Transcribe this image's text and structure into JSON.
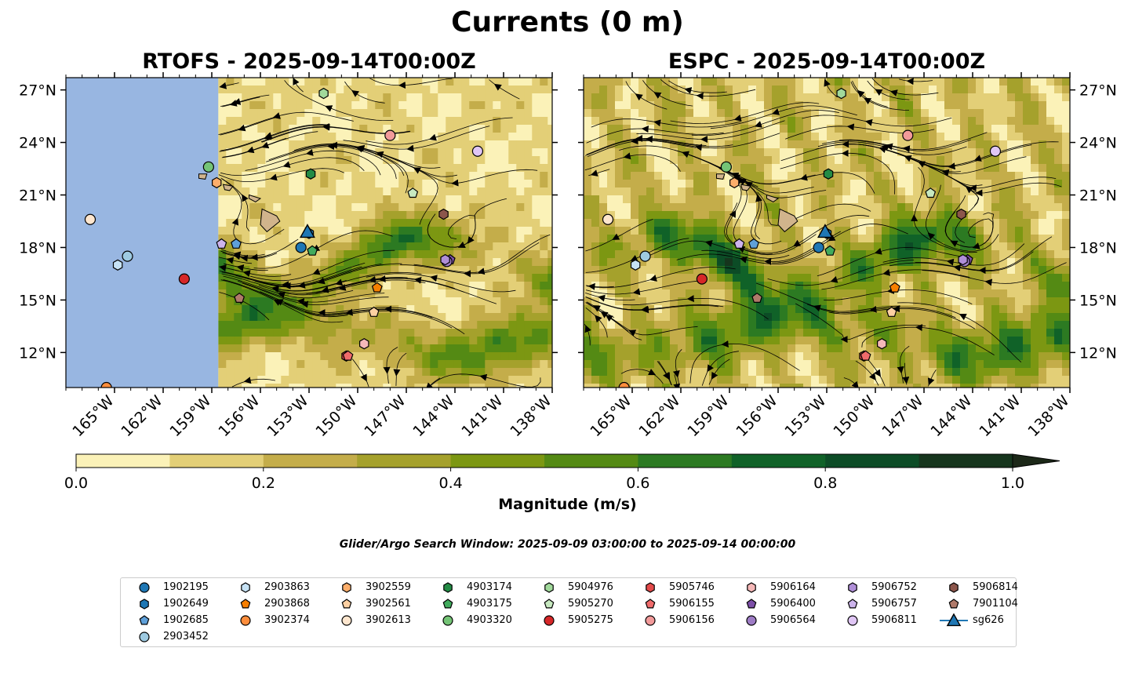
{
  "title": "Currents (0 m)",
  "panels": [
    {
      "title": "RTOFS - 2025-09-14T00:00Z"
    },
    {
      "title": "ESPC - 2025-09-14T00:00Z"
    }
  ],
  "colorbar": {
    "label": "Magnitude (m/s)",
    "ticks": [
      "0.0",
      "0.2",
      "0.4",
      "0.6",
      "0.8",
      "1.0"
    ],
    "levels": [
      0.0,
      0.1,
      0.2,
      0.3,
      0.4,
      0.5,
      0.6,
      0.7,
      0.8,
      0.9,
      1.0
    ],
    "colors": [
      "#fbf2b8",
      "#e3cf77",
      "#c4ad4a",
      "#a5a12c",
      "#7c9712",
      "#548a14",
      "#2c7a22",
      "#106228",
      "#0c4c26",
      "#16351d",
      "#1c2818"
    ]
  },
  "search_window": "Glider/Argo Search Window: 2025-09-09 03:00:00 to 2025-09-14 00:00:00",
  "chart_data": {
    "type": "map",
    "extent_lon": [
      -168,
      -138
    ],
    "extent_lat": [
      10,
      27.7
    ],
    "lon_ticks": [
      -165,
      -162,
      -159,
      -156,
      -153,
      -150,
      -147,
      -144,
      -141,
      -138
    ],
    "lon_tick_labels": [
      "165°W",
      "162°W",
      "159°W",
      "156°W",
      "153°W",
      "150°W",
      "147°W",
      "144°W",
      "141°W",
      "138°W"
    ],
    "lat_ticks": [
      12,
      15,
      18,
      21,
      24,
      27
    ],
    "lat_tick_labels": [
      "12°N",
      "15°N",
      "18°N",
      "21°N",
      "24°N",
      "27°N"
    ],
    "rtofs_data_west_edge_lon": -158.6,
    "colors": {
      "ocean_nodata": "#98b6e1",
      "land": "#d1b48c"
    },
    "platforms": [
      {
        "id": "1902195",
        "marker": "o",
        "color": "#1f77b4",
        "lon": -153.5,
        "lat": 18.0
      },
      {
        "id": "1902649",
        "marker": "h",
        "color": "#1f77b4",
        "lon": -153.0,
        "lat": 18.8
      },
      {
        "id": "1902685",
        "marker": "p",
        "color": "#5fa0d9",
        "lon": -157.5,
        "lat": 18.2
      },
      {
        "id": "2903452",
        "marker": "o",
        "color": "#9ecae1",
        "lon": -164.2,
        "lat": 17.5
      },
      {
        "id": "2903863",
        "marker": "h",
        "color": "#c6e2f5",
        "lon": -164.8,
        "lat": 17.0
      },
      {
        "id": "2903868",
        "marker": "p",
        "color": "#f77f00",
        "lon": -148.8,
        "lat": 15.7
      },
      {
        "id": "3902374",
        "marker": "o",
        "color": "#fd8d3c",
        "lon": -165.5,
        "lat": 10.0
      },
      {
        "id": "3902559",
        "marker": "h",
        "color": "#fdae6b",
        "lon": -158.7,
        "lat": 21.7
      },
      {
        "id": "3902561",
        "marker": "p",
        "color": "#fdd0a2",
        "lon": -149.0,
        "lat": 14.3
      },
      {
        "id": "3902613",
        "marker": "o",
        "color": "#fee6ce",
        "lon": -166.5,
        "lat": 19.6
      },
      {
        "id": "4903174",
        "marker": "h",
        "color": "#238b45",
        "lon": -152.9,
        "lat": 22.2
      },
      {
        "id": "4903175",
        "marker": "p",
        "color": "#41ab5d",
        "lon": -152.8,
        "lat": 17.8
      },
      {
        "id": "4903320",
        "marker": "o",
        "color": "#74c476",
        "lon": -159.2,
        "lat": 22.6
      },
      {
        "id": "5904976",
        "marker": "h",
        "color": "#a1d99b",
        "lon": -152.1,
        "lat": 26.8
      },
      {
        "id": "5905270",
        "marker": "p",
        "color": "#c7e9c0",
        "lon": -146.6,
        "lat": 21.1
      },
      {
        "id": "5905275",
        "marker": "o",
        "color": "#d62728",
        "lon": -160.7,
        "lat": 16.2
      },
      {
        "id": "5905746",
        "marker": "h",
        "color": "#e34a4a",
        "lon": -150.7,
        "lat": 11.8
      },
      {
        "id": "5906155",
        "marker": "p",
        "color": "#f06b6b",
        "lon": -150.6,
        "lat": 11.8
      },
      {
        "id": "5906156",
        "marker": "o",
        "color": "#f29a9a",
        "lon": -148.0,
        "lat": 24.4
      },
      {
        "id": "5906164",
        "marker": "h",
        "color": "#f5b8b8",
        "lon": -149.6,
        "lat": 12.5
      },
      {
        "id": "5906400",
        "marker": "p",
        "color": "#7d4fa8",
        "lon": -144.3,
        "lat": 17.3
      },
      {
        "id": "5906564",
        "marker": "o",
        "color": "#9e7cc5",
        "lon": -144.5,
        "lat": 17.2
      },
      {
        "id": "5906752",
        "marker": "h",
        "color": "#b08fd8",
        "lon": -144.6,
        "lat": 17.3
      },
      {
        "id": "5906757",
        "marker": "p",
        "color": "#cdb4ec",
        "lon": -158.4,
        "lat": 18.2
      },
      {
        "id": "5906811",
        "marker": "o",
        "color": "#e0c6f5",
        "lon": -142.6,
        "lat": 23.5
      },
      {
        "id": "5906814",
        "marker": "h",
        "color": "#8c564b",
        "lon": -144.7,
        "lat": 19.9
      },
      {
        "id": "7901104",
        "marker": "p",
        "color": "#b07a6a",
        "lon": -157.3,
        "lat": 15.1
      },
      {
        "id": "sg626",
        "marker": "^",
        "color": "#1f77b4",
        "lon": -153.1,
        "lat": 18.9
      }
    ]
  }
}
